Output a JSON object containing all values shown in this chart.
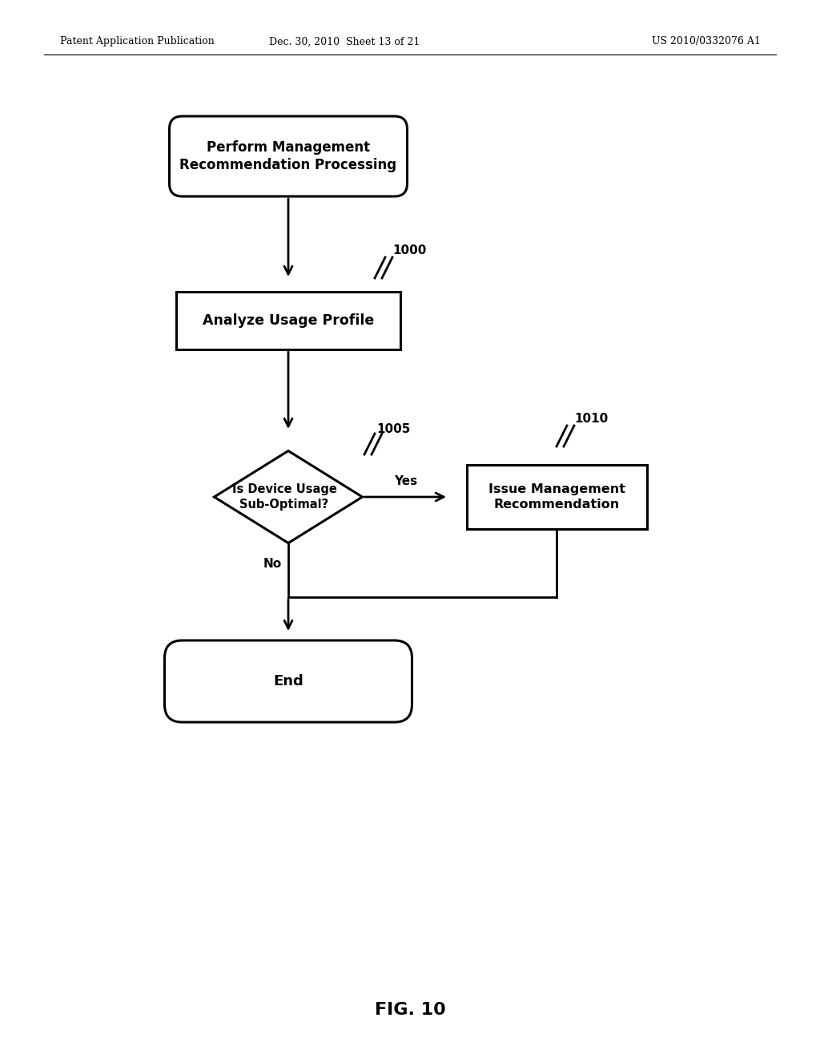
{
  "bg_color": "#ffffff",
  "header_left": "Patent Application Publication",
  "header_mid": "Dec. 30, 2010  Sheet 13 of 21",
  "header_right": "US 2010/0332076 A1",
  "footer_label": "FIG. 10",
  "node_start_text": "Perform Management\nRecommendation Processing",
  "node_analyze_text": "Analyze Usage Profile",
  "node_decision_text": "Is Device Usage\nSub-Optimal?",
  "node_issue_text": "Issue Management\nRecommendation",
  "node_end_text": "End",
  "label_1000": "1000",
  "label_1005": "1005",
  "label_1010": "1010",
  "yes_label": "Yes",
  "no_label": "No",
  "line_color": "#000000",
  "lw": 2.0
}
